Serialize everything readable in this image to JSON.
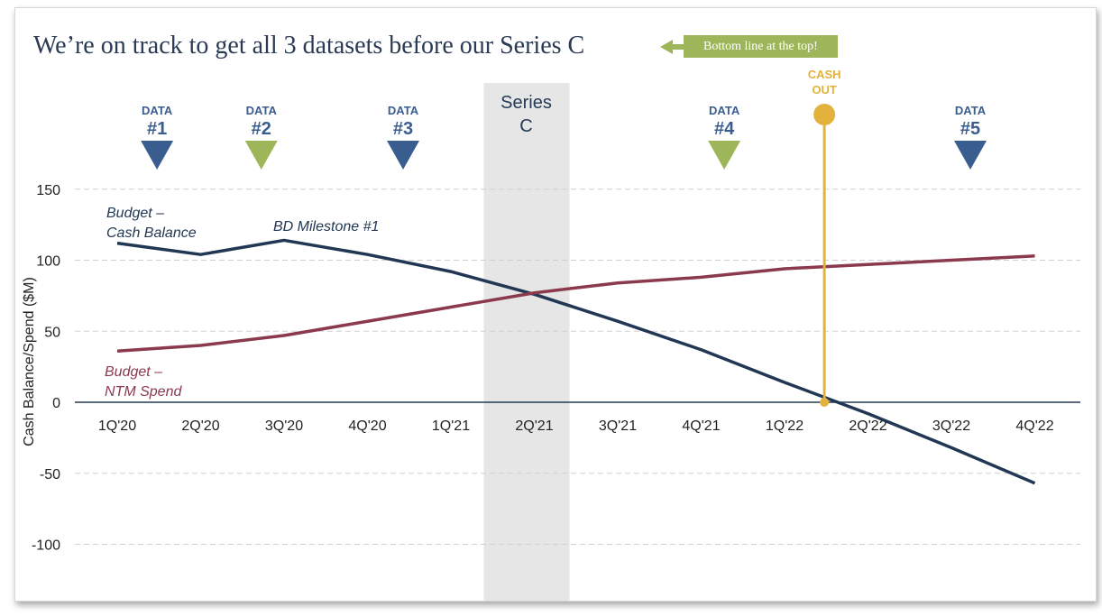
{
  "title": "We’re on track to get all 3 datasets before our Series C",
  "callout": {
    "label": "Bottom line at the top!",
    "color": "#9db65a"
  },
  "colors": {
    "navy": "#213754",
    "maroon": "#8b3a4e",
    "green": "#9db65a",
    "blue_marker": "#3a5d8f",
    "gold": "#e3b23c",
    "shade": "#e6e6e6"
  },
  "chart_data": {
    "type": "line",
    "categories": [
      "1Q'20",
      "2Q'20",
      "3Q'20",
      "4Q'20",
      "1Q'21",
      "2Q'21",
      "3Q'21",
      "4Q'21",
      "1Q'22",
      "2Q'22",
      "3Q'22",
      "4Q'22"
    ],
    "ylabel": "Cash Balance/Spend ($M)",
    "ylim": [
      -110,
      160
    ],
    "yticks": [
      150,
      100,
      50,
      0,
      -50,
      -100
    ],
    "grid": true,
    "series": [
      {
        "name": "Budget – Cash Balance",
        "color": "#213754",
        "values": [
          112,
          104,
          114,
          104,
          92,
          76,
          57,
          37,
          14,
          -8,
          -32,
          -57
        ]
      },
      {
        "name": "Budget – NTM Spend",
        "color": "#8b3a4e",
        "values": [
          36,
          40,
          47,
          57,
          67,
          77,
          84,
          88,
          94,
          97,
          100,
          103
        ]
      }
    ],
    "series_labels": [
      {
        "line1": "Budget –",
        "line2": "Cash Balance"
      },
      {
        "line1": "Budget –",
        "line2": "NTM Spend"
      }
    ],
    "annotations": {
      "milestone": "BD Milestone #1",
      "series_c": {
        "line1": "Series",
        "line2": "C",
        "category": "2Q'21"
      },
      "cash_out": {
        "line1": "CASH",
        "line2": "OUT",
        "x": 8.65
      },
      "data_markers": [
        {
          "line1": "DATA",
          "line2": "#1",
          "x": 0.65,
          "color": "#3a5d8f"
        },
        {
          "line1": "DATA",
          "line2": "#2",
          "x": 1.9,
          "color": "#9db65a"
        },
        {
          "line1": "DATA",
          "line2": "#3",
          "x": 3.6,
          "color": "#3a5d8f"
        },
        {
          "line1": "DATA",
          "line2": "#4",
          "x": 7.45,
          "color": "#9db65a"
        },
        {
          "line1": "DATA",
          "line2": "#5",
          "x": 10.4,
          "color": "#3a5d8f"
        }
      ]
    }
  }
}
